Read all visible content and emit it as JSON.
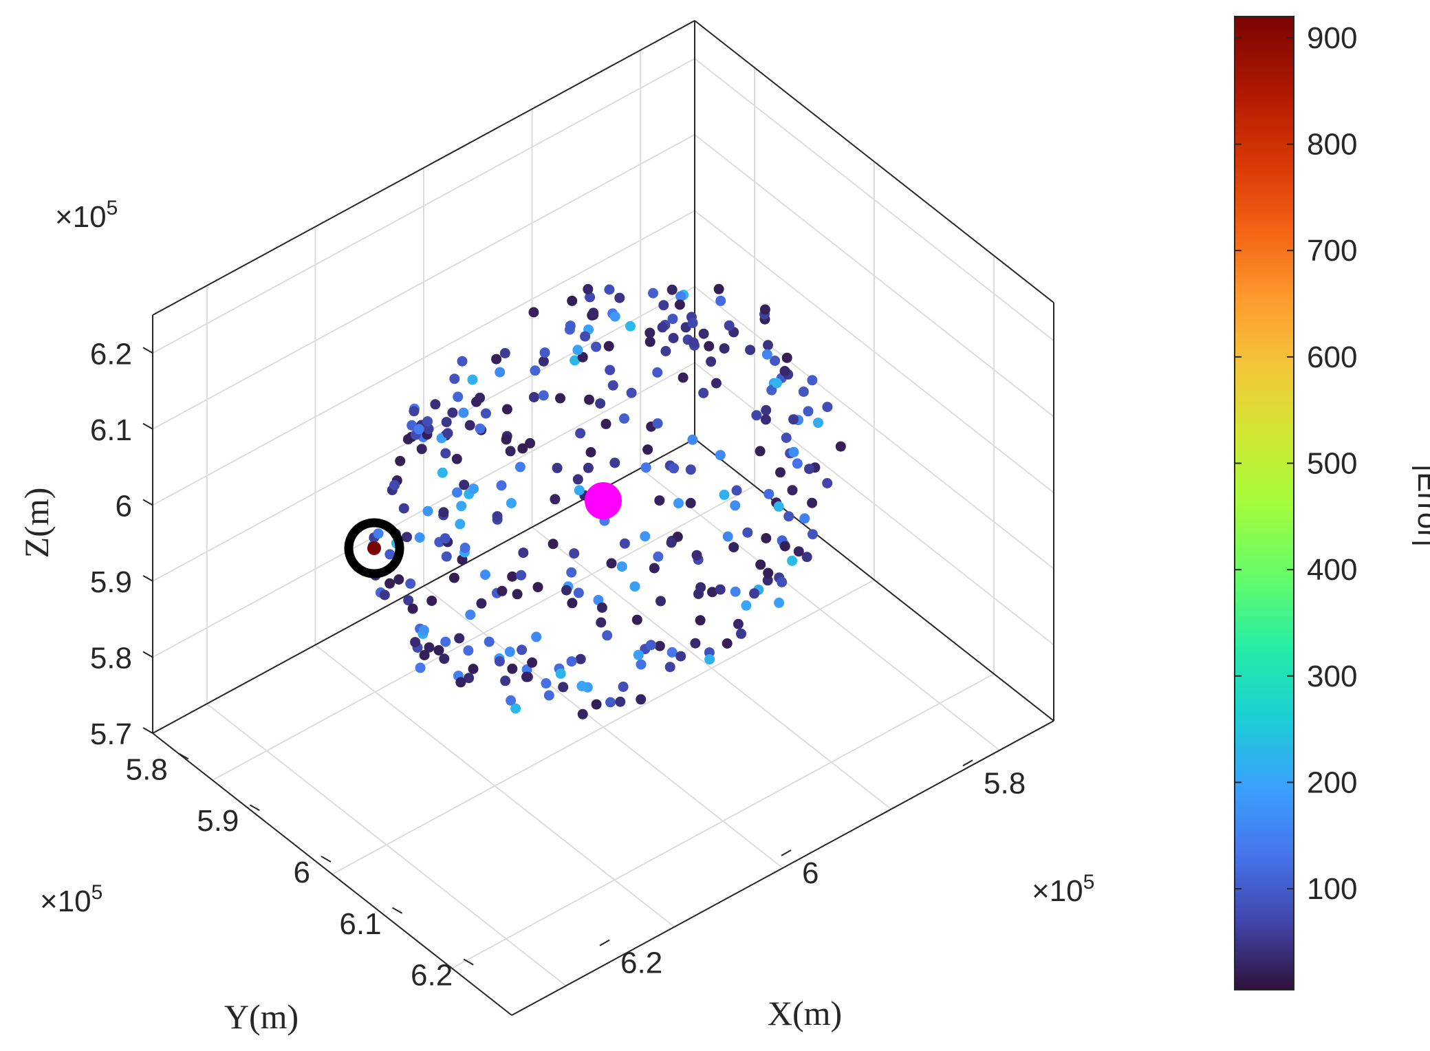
{
  "chart_data": {
    "type": "scatter3d",
    "title": "",
    "xlabel": "X(m)",
    "ylabel": "Y(m)",
    "zlabel": "Z(m)",
    "x_multiplier": "×10",
    "y_multiplier": "×10",
    "z_multiplier": "×10",
    "multiplier_exponent": "5",
    "x_ticks": [
      "5.8",
      "6",
      "6.2"
    ],
    "x_tick_values": [
      5.8,
      6.0,
      6.2
    ],
    "y_ticks": [
      "5.8",
      "5.9",
      "6",
      "6.1",
      "6.2"
    ],
    "y_tick_values": [
      5.8,
      5.9,
      6.0,
      6.1,
      6.2
    ],
    "z_ticks": [
      "5.7",
      "5.8",
      "5.9",
      "6",
      "6.1",
      "6.2"
    ],
    "z_tick_values": [
      5.7,
      5.8,
      5.9,
      6.0,
      6.1,
      6.2
    ],
    "xlim": [
      5.7,
      6.3
    ],
    "ylim": [
      5.75,
      6.25
    ],
    "zlim": [
      5.7,
      6.25
    ],
    "grid": true,
    "colorbar": {
      "label": "|Error|",
      "ticks": [
        "100",
        "200",
        "300",
        "400",
        "500",
        "600",
        "700",
        "800",
        "900"
      ],
      "tick_values": [
        100,
        200,
        300,
        400,
        500,
        600,
        700,
        800,
        900
      ],
      "range": [
        5,
        920
      ],
      "colormap": "turbo"
    },
    "highlight_center": {
      "x": 6.0,
      "y": 6.0,
      "z": 6.0,
      "color": "#ff00ff"
    },
    "highlight_max_error": {
      "x": 5.8,
      "y": 6.2,
      "z": 5.95,
      "error": 920,
      "ring_color": "#000000"
    },
    "scatter_points_description_count": 340,
    "scatter_seed": 20240
  }
}
